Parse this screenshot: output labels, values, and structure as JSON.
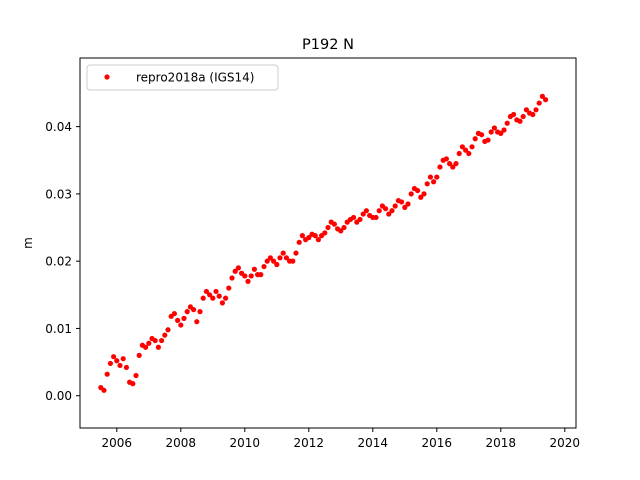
{
  "chart_data": {
    "type": "scatter",
    "title": "P192 N",
    "xlabel": "",
    "ylabel": "m",
    "xlim": [
      2004.85,
      2020.35
    ],
    "ylim": [
      -0.0048,
      0.0502
    ],
    "grid": false,
    "legend": {
      "placement": "top-left",
      "entries": [
        "repro2018a (IGS14)"
      ]
    },
    "x_ticks": [
      2006,
      2008,
      2010,
      2012,
      2014,
      2016,
      2018,
      2020
    ],
    "x_tick_labels": [
      "2006",
      "2008",
      "2010",
      "2012",
      "2014",
      "2016",
      "2018",
      "2020"
    ],
    "y_ticks": [
      0.0,
      0.01,
      0.02,
      0.03,
      0.04
    ],
    "y_tick_labels": [
      "0.00",
      "0.01",
      "0.02",
      "0.03",
      "0.04"
    ],
    "series": [
      {
        "name": "repro2018a (IGS14)",
        "color": "#ff0000",
        "marker": "circle",
        "x": [
          2005.5,
          2005.6,
          2005.7,
          2005.8,
          2005.9,
          2006.0,
          2006.1,
          2006.2,
          2006.3,
          2006.4,
          2006.5,
          2006.6,
          2006.7,
          2006.8,
          2006.9,
          2007.0,
          2007.1,
          2007.2,
          2007.3,
          2007.4,
          2007.5,
          2007.6,
          2007.7,
          2007.8,
          2007.9,
          2008.0,
          2008.1,
          2008.2,
          2008.3,
          2008.4,
          2008.5,
          2008.6,
          2008.7,
          2008.8,
          2008.9,
          2009.0,
          2009.1,
          2009.2,
          2009.3,
          2009.4,
          2009.5,
          2009.6,
          2009.7,
          2009.8,
          2009.9,
          2010.0,
          2010.1,
          2010.2,
          2010.3,
          2010.4,
          2010.5,
          2010.6,
          2010.7,
          2010.8,
          2010.9,
          2011.0,
          2011.1,
          2011.2,
          2011.3,
          2011.4,
          2011.5,
          2011.6,
          2011.7,
          2011.8,
          2011.9,
          2012.0,
          2012.1,
          2012.2,
          2012.3,
          2012.4,
          2012.5,
          2012.6,
          2012.7,
          2012.8,
          2012.9,
          2013.0,
          2013.1,
          2013.2,
          2013.3,
          2013.4,
          2013.5,
          2013.6,
          2013.7,
          2013.8,
          2013.9,
          2014.0,
          2014.1,
          2014.2,
          2014.3,
          2014.4,
          2014.5,
          2014.6,
          2014.7,
          2014.8,
          2014.9,
          2015.0,
          2015.1,
          2015.2,
          2015.3,
          2015.4,
          2015.5,
          2015.6,
          2015.7,
          2015.8,
          2015.9,
          2016.0,
          2016.1,
          2016.2,
          2016.3,
          2016.4,
          2016.5,
          2016.6,
          2016.7,
          2016.8,
          2016.9,
          2017.0,
          2017.1,
          2017.2,
          2017.3,
          2017.4,
          2017.5,
          2017.6,
          2017.7,
          2017.8,
          2017.9,
          2018.0,
          2018.1,
          2018.2,
          2018.3,
          2018.4,
          2018.5,
          2018.6,
          2018.7,
          2018.8,
          2018.9,
          2019.0,
          2019.1,
          2019.2,
          2019.3,
          2019.4
        ],
        "y": [
          0.0012,
          0.0008,
          0.0032,
          0.0048,
          0.0058,
          0.0052,
          0.0045,
          0.0055,
          0.0042,
          0.002,
          0.0018,
          0.003,
          0.006,
          0.0075,
          0.0072,
          0.0078,
          0.0085,
          0.0082,
          0.0072,
          0.0082,
          0.009,
          0.0098,
          0.0118,
          0.0122,
          0.0112,
          0.0105,
          0.0115,
          0.0125,
          0.0132,
          0.0128,
          0.011,
          0.0125,
          0.0145,
          0.0155,
          0.015,
          0.0145,
          0.0155,
          0.0148,
          0.0138,
          0.0145,
          0.016,
          0.0175,
          0.0185,
          0.019,
          0.0182,
          0.0178,
          0.017,
          0.0178,
          0.0188,
          0.018,
          0.018,
          0.0192,
          0.02,
          0.0205,
          0.02,
          0.0195,
          0.0205,
          0.0212,
          0.0205,
          0.02,
          0.02,
          0.0212,
          0.0228,
          0.0238,
          0.0232,
          0.0235,
          0.024,
          0.0238,
          0.0232,
          0.0238,
          0.0242,
          0.025,
          0.0258,
          0.0255,
          0.0248,
          0.0245,
          0.025,
          0.0258,
          0.0262,
          0.0265,
          0.0258,
          0.0262,
          0.027,
          0.0275,
          0.0268,
          0.0265,
          0.0265,
          0.0275,
          0.0282,
          0.0278,
          0.027,
          0.0275,
          0.0282,
          0.029,
          0.0288,
          0.028,
          0.0285,
          0.03,
          0.0308,
          0.0305,
          0.0295,
          0.03,
          0.0315,
          0.0325,
          0.0318,
          0.0325,
          0.034,
          0.035,
          0.0352,
          0.0345,
          0.034,
          0.0345,
          0.036,
          0.037,
          0.0365,
          0.036,
          0.037,
          0.0382,
          0.039,
          0.0388,
          0.0378,
          0.038,
          0.0392,
          0.0398,
          0.0392,
          0.039,
          0.0395,
          0.0405,
          0.0415,
          0.0418,
          0.041,
          0.0408,
          0.0415,
          0.0425,
          0.042,
          0.0418,
          0.0425,
          0.0435,
          0.0445,
          0.044
        ]
      }
    ]
  }
}
